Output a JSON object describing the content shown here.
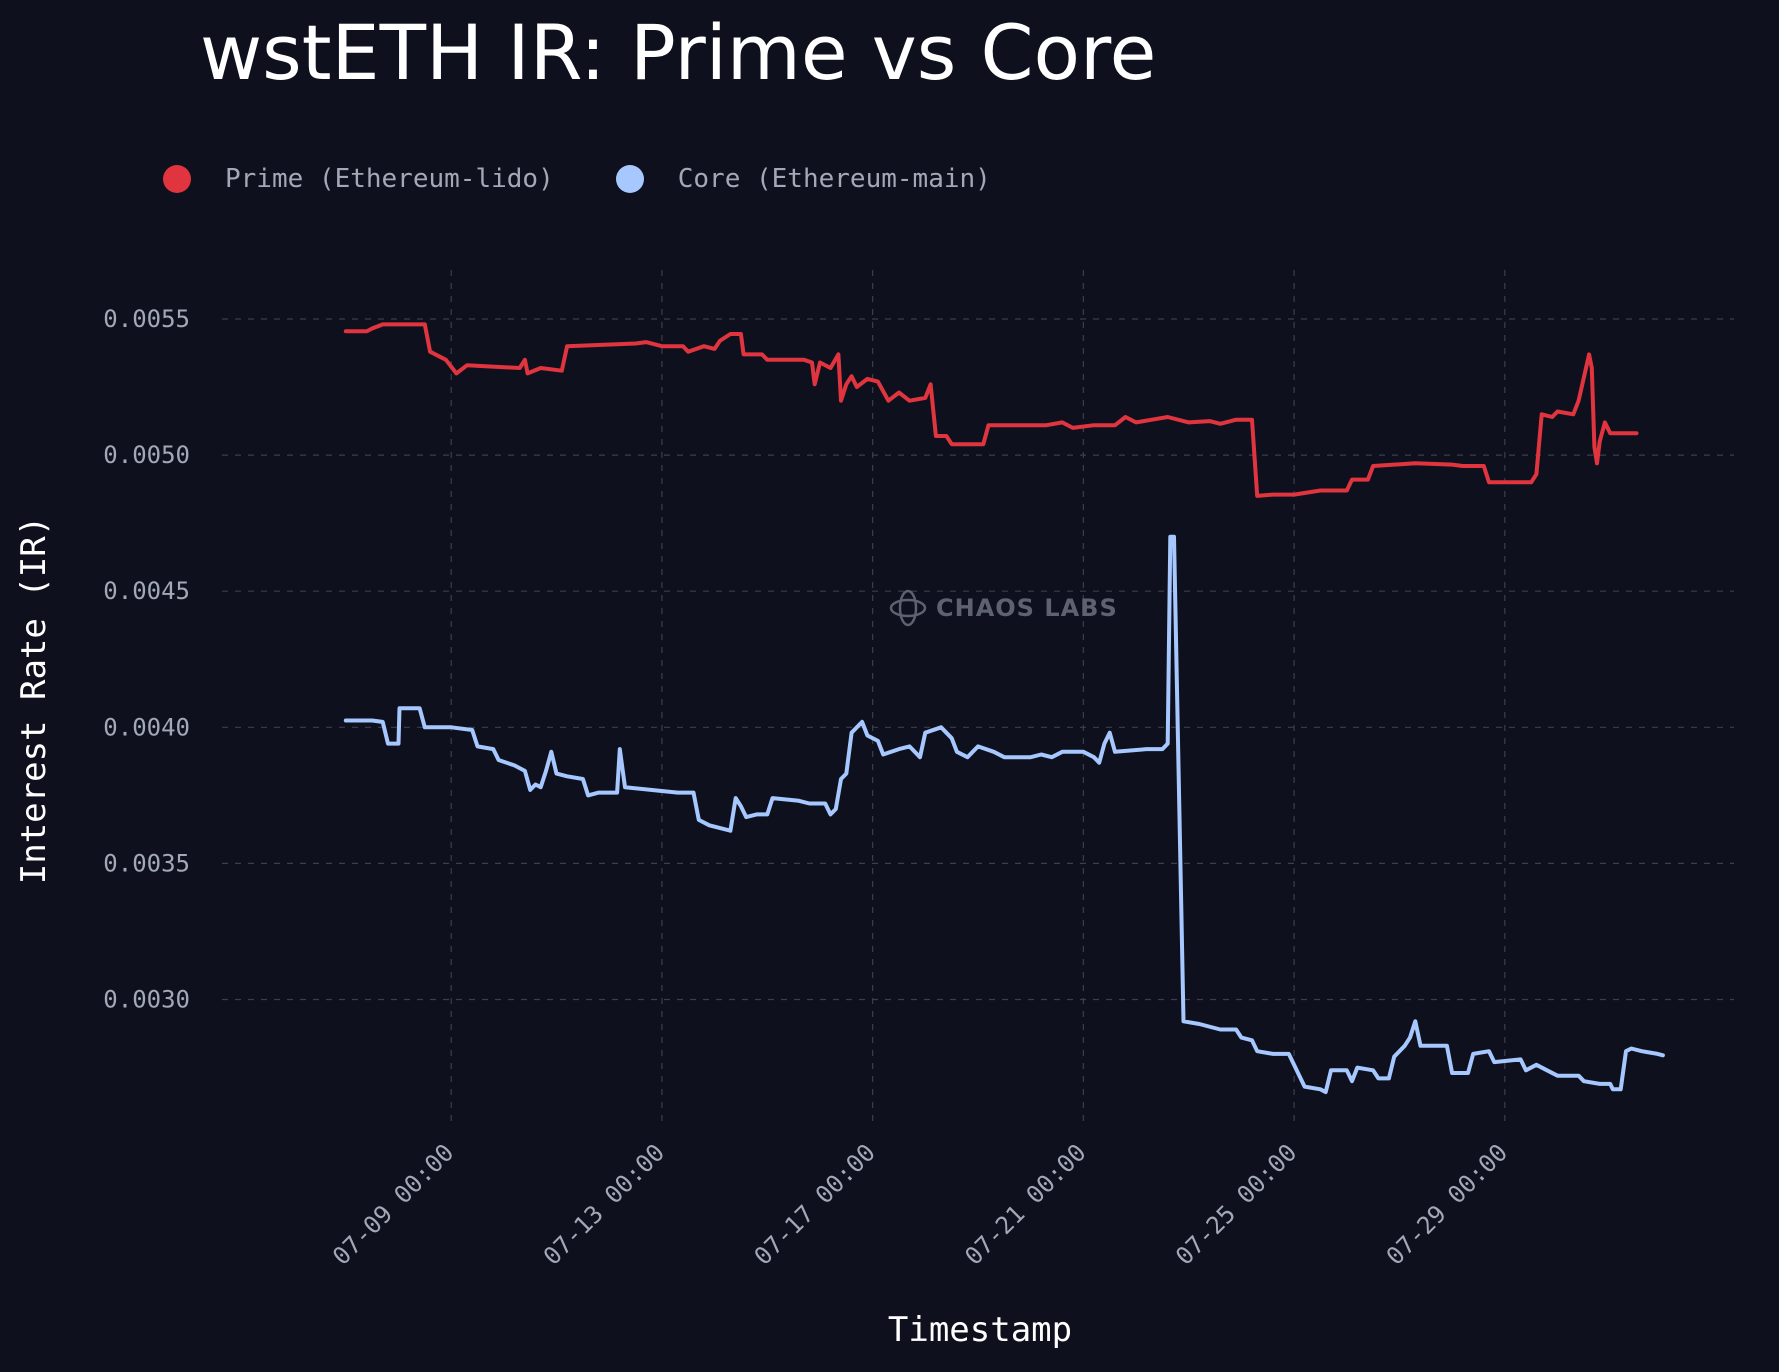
{
  "chart_data": {
    "type": "line",
    "title": "wstETH IR: Prime vs Core",
    "xlabel": "Timestamp",
    "ylabel": "Interest Rate (IR)",
    "x_range_days": [
      -4.35,
      24.35
    ],
    "ylim": [
      0.00255,
      0.00568
    ],
    "y_ticks": [
      0.003,
      0.0035,
      0.004,
      0.0045,
      0.005,
      0.0055
    ],
    "y_tick_labels": [
      "0.0030",
      "0.0035",
      "0.0040",
      "0.0045",
      "0.0050",
      "0.0055"
    ],
    "x_ticks_days": [
      0,
      4,
      8,
      12,
      16,
      20
    ],
    "x_tick_labels": [
      "07-09 00:00",
      "07-13 00:00",
      "07-17 00:00",
      "07-21 00:00",
      "07-25 00:00",
      "07-29 00:00"
    ],
    "grid": true,
    "legend_position": "top-left",
    "series": [
      {
        "name": "Prime (Ethereum-lido)",
        "color": "#e0353f",
        "points": [
          [
            -2.0,
            0.005455
          ],
          [
            -1.6,
            0.005455
          ],
          [
            -1.5,
            0.005465
          ],
          [
            -1.3,
            0.00548
          ],
          [
            -0.5,
            0.00548
          ],
          [
            -0.4,
            0.00538
          ],
          [
            -0.1,
            0.00535
          ],
          [
            0.1,
            0.0053
          ],
          [
            0.3,
            0.00533
          ],
          [
            1.3,
            0.00532
          ],
          [
            1.4,
            0.00535
          ],
          [
            1.45,
            0.0053
          ],
          [
            1.7,
            0.00532
          ],
          [
            2.1,
            0.00531
          ],
          [
            2.2,
            0.0054
          ],
          [
            3.5,
            0.00541
          ],
          [
            3.7,
            0.005415
          ],
          [
            4.0,
            0.0054
          ],
          [
            4.4,
            0.0054
          ],
          [
            4.5,
            0.00538
          ],
          [
            4.8,
            0.0054
          ],
          [
            5.0,
            0.00539
          ],
          [
            5.1,
            0.00542
          ],
          [
            5.3,
            0.005445
          ],
          [
            5.5,
            0.005445
          ],
          [
            5.55,
            0.00537
          ],
          [
            5.9,
            0.00537
          ],
          [
            6.0,
            0.00535
          ],
          [
            6.7,
            0.00535
          ],
          [
            6.85,
            0.00534
          ],
          [
            6.9,
            0.00526
          ],
          [
            7.0,
            0.00534
          ],
          [
            7.2,
            0.00532
          ],
          [
            7.35,
            0.00537
          ],
          [
            7.4,
            0.0052
          ],
          [
            7.5,
            0.00526
          ],
          [
            7.6,
            0.00529
          ],
          [
            7.7,
            0.00525
          ],
          [
            7.9,
            0.00528
          ],
          [
            8.1,
            0.00527
          ],
          [
            8.3,
            0.0052
          ],
          [
            8.5,
            0.00523
          ],
          [
            8.7,
            0.0052
          ],
          [
            9.0,
            0.00521
          ],
          [
            9.1,
            0.00526
          ],
          [
            9.2,
            0.00507
          ],
          [
            9.4,
            0.00507
          ],
          [
            9.5,
            0.00504
          ],
          [
            10.1,
            0.00504
          ],
          [
            10.2,
            0.00511
          ],
          [
            11.3,
            0.00511
          ],
          [
            11.6,
            0.00512
          ],
          [
            11.8,
            0.0051
          ],
          [
            12.2,
            0.00511
          ],
          [
            12.6,
            0.00511
          ],
          [
            12.8,
            0.00514
          ],
          [
            13.0,
            0.00512
          ],
          [
            13.3,
            0.00513
          ],
          [
            13.6,
            0.00514
          ],
          [
            14.0,
            0.00512
          ],
          [
            14.4,
            0.005125
          ],
          [
            14.6,
            0.005115
          ],
          [
            14.9,
            0.00513
          ],
          [
            15.2,
            0.00513
          ],
          [
            15.3,
            0.00485
          ],
          [
            15.6,
            0.004855
          ],
          [
            16.0,
            0.004855
          ],
          [
            16.5,
            0.00487
          ],
          [
            17.0,
            0.00487
          ],
          [
            17.1,
            0.00491
          ],
          [
            17.4,
            0.00491
          ],
          [
            17.5,
            0.00496
          ],
          [
            18.3,
            0.00497
          ],
          [
            19.0,
            0.004965
          ],
          [
            19.2,
            0.00496
          ],
          [
            19.6,
            0.00496
          ],
          [
            19.7,
            0.0049
          ],
          [
            20.5,
            0.0049
          ],
          [
            20.6,
            0.00493
          ],
          [
            20.7,
            0.00515
          ],
          [
            20.9,
            0.00514
          ],
          [
            21.0,
            0.00516
          ],
          [
            21.3,
            0.00515
          ],
          [
            21.4,
            0.0052
          ],
          [
            21.6,
            0.00537
          ],
          [
            21.65,
            0.00532
          ],
          [
            21.7,
            0.00503
          ],
          [
            21.75,
            0.00497
          ],
          [
            21.8,
            0.00505
          ],
          [
            21.9,
            0.00512
          ],
          [
            22.0,
            0.00508
          ],
          [
            22.5,
            0.00508
          ]
        ]
      },
      {
        "name": "Core (Ethereum-main)",
        "color": "#a6c8ff",
        "points": [
          [
            -2.0,
            0.004025
          ],
          [
            -1.5,
            0.004025
          ],
          [
            -1.3,
            0.00402
          ],
          [
            -1.2,
            0.00394
          ],
          [
            -1.0,
            0.00394
          ],
          [
            -0.98,
            0.00407
          ],
          [
            -0.6,
            0.00407
          ],
          [
            -0.5,
            0.004
          ],
          [
            0.0,
            0.004
          ],
          [
            0.4,
            0.00399
          ],
          [
            0.5,
            0.00393
          ],
          [
            0.8,
            0.00392
          ],
          [
            0.9,
            0.00388
          ],
          [
            1.2,
            0.00386
          ],
          [
            1.4,
            0.00384
          ],
          [
            1.5,
            0.00377
          ],
          [
            1.6,
            0.00379
          ],
          [
            1.7,
            0.00378
          ],
          [
            1.8,
            0.00384
          ],
          [
            1.9,
            0.00391
          ],
          [
            2.0,
            0.00383
          ],
          [
            2.2,
            0.00382
          ],
          [
            2.5,
            0.00381
          ],
          [
            2.6,
            0.00375
          ],
          [
            2.8,
            0.00376
          ],
          [
            3.0,
            0.00376
          ],
          [
            3.15,
            0.00376
          ],
          [
            3.2,
            0.00392
          ],
          [
            3.3,
            0.00378
          ],
          [
            4.3,
            0.00376
          ],
          [
            4.6,
            0.00376
          ],
          [
            4.7,
            0.00366
          ],
          [
            4.9,
            0.00364
          ],
          [
            5.3,
            0.00362
          ],
          [
            5.4,
            0.00374
          ],
          [
            5.5,
            0.00371
          ],
          [
            5.6,
            0.00367
          ],
          [
            5.8,
            0.00368
          ],
          [
            6.0,
            0.00368
          ],
          [
            6.1,
            0.00374
          ],
          [
            6.6,
            0.00373
          ],
          [
            6.8,
            0.00372
          ],
          [
            7.1,
            0.00372
          ],
          [
            7.2,
            0.00368
          ],
          [
            7.3,
            0.0037
          ],
          [
            7.4,
            0.00381
          ],
          [
            7.5,
            0.00383
          ],
          [
            7.6,
            0.00398
          ],
          [
            7.8,
            0.00402
          ],
          [
            7.9,
            0.00397
          ],
          [
            8.1,
            0.00395
          ],
          [
            8.2,
            0.0039
          ],
          [
            8.5,
            0.00392
          ],
          [
            8.7,
            0.00393
          ],
          [
            8.9,
            0.00389
          ],
          [
            9.0,
            0.00398
          ],
          [
            9.3,
            0.004
          ],
          [
            9.5,
            0.00396
          ],
          [
            9.6,
            0.00391
          ],
          [
            9.8,
            0.00389
          ],
          [
            10.0,
            0.00393
          ],
          [
            10.3,
            0.00391
          ],
          [
            10.5,
            0.00389
          ],
          [
            11.0,
            0.00389
          ],
          [
            11.2,
            0.0039
          ],
          [
            11.4,
            0.00389
          ],
          [
            11.6,
            0.00391
          ],
          [
            12.0,
            0.00391
          ],
          [
            12.2,
            0.00389
          ],
          [
            12.3,
            0.00387
          ],
          [
            12.4,
            0.00394
          ],
          [
            12.5,
            0.00398
          ],
          [
            12.6,
            0.00391
          ],
          [
            13.2,
            0.00392
          ],
          [
            13.5,
            0.00392
          ],
          [
            13.6,
            0.00394
          ],
          [
            13.65,
            0.0047
          ],
          [
            13.72,
            0.0047
          ],
          [
            13.9,
            0.00292
          ],
          [
            14.2,
            0.00291
          ],
          [
            14.6,
            0.00289
          ],
          [
            14.9,
            0.00289
          ],
          [
            15.0,
            0.00286
          ],
          [
            15.2,
            0.00285
          ],
          [
            15.3,
            0.00281
          ],
          [
            15.6,
            0.0028
          ],
          [
            15.9,
            0.0028
          ],
          [
            16.2,
            0.00268
          ],
          [
            16.5,
            0.00267
          ],
          [
            16.6,
            0.00266
          ],
          [
            16.7,
            0.00274
          ],
          [
            17.0,
            0.00274
          ],
          [
            17.1,
            0.0027
          ],
          [
            17.2,
            0.00275
          ],
          [
            17.5,
            0.00274
          ],
          [
            17.6,
            0.00271
          ],
          [
            17.8,
            0.00271
          ],
          [
            17.9,
            0.00279
          ],
          [
            18.1,
            0.00283
          ],
          [
            18.2,
            0.00286
          ],
          [
            18.3,
            0.00292
          ],
          [
            18.4,
            0.00283
          ],
          [
            18.9,
            0.00283
          ],
          [
            19.0,
            0.00273
          ],
          [
            19.3,
            0.00273
          ],
          [
            19.4,
            0.0028
          ],
          [
            19.7,
            0.00281
          ],
          [
            19.8,
            0.00277
          ],
          [
            20.3,
            0.00278
          ],
          [
            20.4,
            0.00274
          ],
          [
            20.6,
            0.00276
          ],
          [
            20.8,
            0.00274
          ],
          [
            21.0,
            0.00272
          ],
          [
            21.4,
            0.00272
          ],
          [
            21.5,
            0.0027
          ],
          [
            21.8,
            0.00269
          ],
          [
            22.0,
            0.00269
          ],
          [
            22.05,
            0.00267
          ],
          [
            22.2,
            0.00267
          ],
          [
            22.3,
            0.00281
          ],
          [
            22.4,
            0.00282
          ],
          [
            22.6,
            0.00281
          ],
          [
            22.9,
            0.0028
          ],
          [
            23.0,
            0.002795
          ]
        ]
      }
    ]
  },
  "watermark": {
    "text": "CHAOS LABS"
  },
  "colors": {
    "background": "#0e111d",
    "grid": "#3a3e4d"
  }
}
